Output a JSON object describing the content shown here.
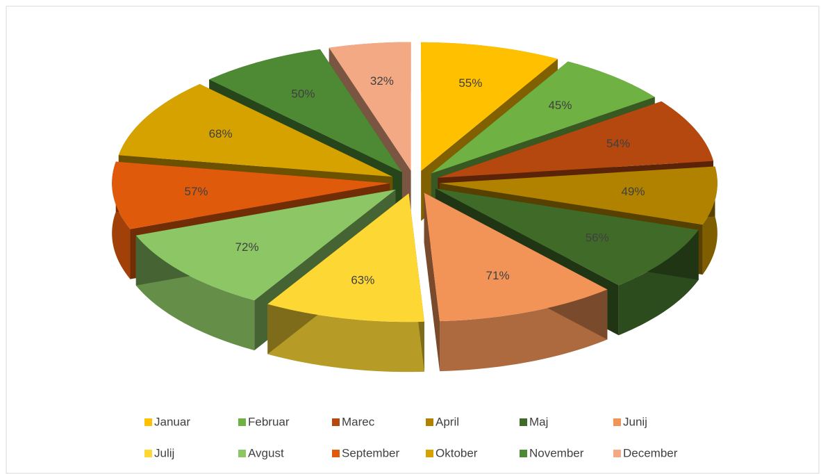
{
  "chart_data": {
    "type": "pie",
    "categories": [
      "Januar",
      "Februar",
      "Marec",
      "April",
      "Maj",
      "Junij",
      "Julij",
      "Avgust",
      "September",
      "Oktober",
      "November",
      "December"
    ],
    "values": [
      55,
      45,
      54,
      49,
      56,
      71,
      63,
      72,
      57,
      68,
      50,
      32
    ],
    "value_labels": [
      "55%",
      "45%",
      "54%",
      "49%",
      "56%",
      "71%",
      "63%",
      "72%",
      "57%",
      "68%",
      "50%",
      "32%"
    ],
    "colors": [
      "#ffc000",
      "#6fb142",
      "#b5480f",
      "#b08200",
      "#3f6a28",
      "#f29358",
      "#fdd835",
      "#8cc665",
      "#e05a0c",
      "#d6a200",
      "#4e8a33",
      "#f3a983"
    ],
    "legend": "bottom"
  }
}
